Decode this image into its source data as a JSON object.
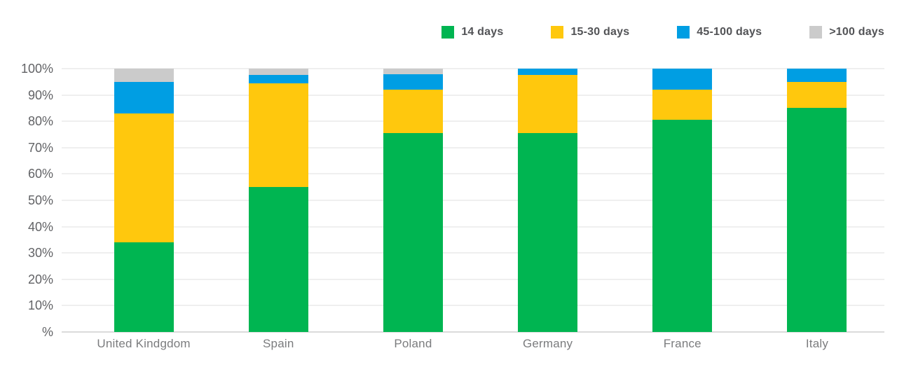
{
  "chart_data": {
    "type": "bar",
    "stacked": true,
    "orientation": "vertical",
    "unit": "%",
    "title": "",
    "xlabel": "",
    "ylabel": "",
    "grid": true,
    "legend_position": "top-right",
    "categories": [
      "United Kindgdom",
      "Spain",
      "Poland",
      "Germany",
      "France",
      "Italy"
    ],
    "series": [
      {
        "name": "14 days",
        "color": "#00b551",
        "values": [
          34,
          55,
          75.5,
          75.5,
          80.5,
          85
        ]
      },
      {
        "name": "15-30 days",
        "color": "#ffc80d",
        "values": [
          49,
          39.5,
          16.5,
          22,
          11.5,
          10
        ]
      },
      {
        "name": "45-100 days",
        "color": "#009ee3",
        "values": [
          12,
          3,
          6,
          2.5,
          8,
          5
        ]
      },
      {
        "name": ">100 days",
        "color": "#cbcbcb",
        "values": [
          5,
          2.5,
          2,
          0,
          0,
          0
        ]
      }
    ],
    "y_axis": {
      "min": 0,
      "max": 100,
      "step": 10,
      "ticks": [
        "100%",
        "90%",
        "80%",
        "70%",
        "60%",
        "50%",
        "40%",
        "30%",
        "20%",
        "10%",
        "%"
      ]
    }
  },
  "colors": {
    "background": "#ffffff",
    "gridline": "#efefef",
    "baseline": "#dbdbdb",
    "y_label_text": "#626366",
    "x_label_text": "#7b7c7e",
    "legend_text": "#525356"
  }
}
